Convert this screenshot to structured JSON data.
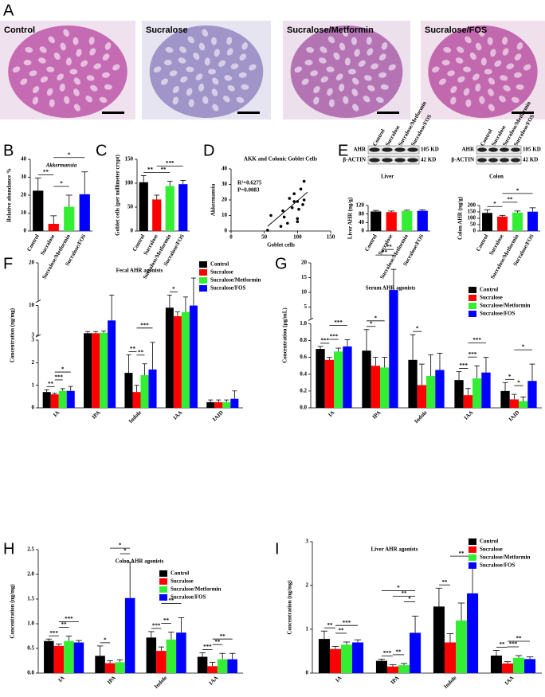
{
  "panel_a": {
    "label": "A",
    "images": [
      "Control",
      "Sucralose",
      "Sucralose/Metformin",
      "Sucralose/FOS"
    ]
  },
  "chart_data": [
    {
      "type": "bar",
      "panel_label": "B",
      "title": "Akkermansia",
      "y_label": "Relative abundance %",
      "categories": [
        "Control",
        "Sucralose",
        "Sucralose/Metformin",
        "Sucralose/FOS"
      ],
      "colors": [
        "#000000",
        "#ff0000",
        "#33ee33",
        "#0000ff"
      ],
      "values": [
        22.5,
        4,
        13.5,
        20.5
      ],
      "errors": [
        7,
        4.5,
        6.5,
        12.5
      ],
      "ylim": [
        0,
        40
      ],
      "yticks": [
        0,
        10,
        20,
        30,
        40
      ],
      "comparisons": [
        {
          "between": [
            0,
            1
          ],
          "label": "**"
        },
        {
          "between": [
            1,
            2
          ],
          "label": "*"
        },
        {
          "between": [
            1,
            3
          ],
          "label": "*"
        }
      ]
    },
    {
      "type": "bar",
      "panel_label": "C",
      "y_label": "Goblet cells (per millimeter crypt)",
      "categories": [
        "Control",
        "Sucralose",
        "Sucralose/Metformin",
        "Sucralose/FOS"
      ],
      "colors": [
        "#000000",
        "#ff0000",
        "#33ee33",
        "#0000ff"
      ],
      "values": [
        102,
        66,
        94,
        98
      ],
      "errors": [
        14,
        9,
        10,
        8
      ],
      "ylim": [
        0,
        150
      ],
      "yticks": [
        0,
        50,
        100,
        150
      ],
      "comparisons": [
        {
          "between": [
            0,
            1
          ],
          "label": "**"
        },
        {
          "between": [
            1,
            2
          ],
          "label": "**"
        },
        {
          "between": [
            1,
            3
          ],
          "label": "***"
        }
      ]
    },
    {
      "type": "scatter",
      "panel_label": "D",
      "title": "AKK and Colonic Goblet Cells",
      "x_label": "Goblet cells",
      "y_label": "Akkermansia",
      "x": [
        55,
        60,
        75,
        78,
        80,
        85,
        88,
        92,
        95,
        95,
        100,
        100,
        100,
        102,
        105,
        108,
        110,
        110
      ],
      "y": [
        0.5,
        10,
        3,
        13,
        9,
        5,
        21,
        15,
        19,
        24,
        6,
        8,
        19,
        14,
        27,
        17,
        20,
        32
      ],
      "color": "#000000",
      "trendline": {
        "x": [
          55,
          115
        ],
        "y": [
          3,
          25
        ]
      },
      "annotations": [
        "R²=0.6275",
        "P=0.0083"
      ],
      "xlim": [
        0,
        150
      ],
      "xticks": [
        0,
        50,
        100,
        150
      ],
      "ylim": [
        0,
        40
      ],
      "yticks": [
        0,
        10,
        20,
        30,
        40
      ]
    },
    {
      "type": "bar",
      "panel_label": "E",
      "y_label": "Liver AHR (ng/g)",
      "blot": {
        "rows": [
          "AHR",
          "β-ACTIN"
        ],
        "sizes": [
          "105 KD",
          "42 KD"
        ],
        "tissue": "Liver"
      },
      "categories": [
        "Control",
        "Sucralose",
        "Sucralose/Metformin",
        "Sucralose/FOS"
      ],
      "colors": [
        "#000000",
        "#ff0000",
        "#33ee33",
        "#0000ff"
      ],
      "values": [
        92,
        89,
        94,
        95
      ],
      "errors": [
        5,
        5,
        4,
        5
      ],
      "ylim": [
        0,
        120
      ],
      "yticks": [
        0,
        40,
        80,
        120
      ],
      "comparisons": []
    },
    {
      "type": "bar",
      "y_label": "Colon AHR (ng/g)",
      "blot": {
        "rows": [
          "AHR",
          "β-ACTIN"
        ],
        "sizes": [
          "105 KD",
          "42 KD"
        ],
        "tissue": "Colon"
      },
      "categories": [
        "Control",
        "Sucralose",
        "Sucralose/Metformin",
        "Sucralose/FOS"
      ],
      "colors": [
        "#000000",
        "#ff0000",
        "#33ee33",
        "#0000ff"
      ],
      "values": [
        142,
        113,
        145,
        152
      ],
      "errors": [
        25,
        10,
        12,
        30
      ],
      "ylim": [
        0,
        200
      ],
      "yticks": [
        0,
        50,
        100,
        150,
        200
      ],
      "comparisons": [
        {
          "between": [
            0,
            1
          ],
          "label": "*"
        },
        {
          "between": [
            1,
            2
          ],
          "label": "**"
        },
        {
          "between": [
            1,
            3
          ],
          "label": "*"
        }
      ]
    },
    {
      "type": "bar",
      "panel_label": "F",
      "title": "Fecal AHR agonists",
      "y_label": "Concentration (ng/mg)",
      "categories": [
        "IA",
        "IPA",
        "Indole",
        "IAA",
        "IAID"
      ],
      "legend": "upper right",
      "y_segments": [
        {
          "ylim": [
            0,
            3
          ],
          "yticks": [
            0,
            1,
            2,
            3
          ]
        },
        {
          "ylim": [
            3,
            10
          ],
          "yticks": [
            3,
            10
          ]
        },
        {
          "ylim": [
            10,
            20
          ],
          "yticks": [
            20
          ]
        }
      ],
      "series": [
        {
          "name": "Control",
          "color": "#000000",
          "values": [
            0.7,
            3.5,
            1.55,
            9.5,
            0.25
          ],
          "errors": [
            0.1,
            0.4,
            0.8,
            2,
            0.1
          ]
        },
        {
          "name": "Sucralose",
          "color": "#ff0000",
          "values": [
            0.6,
            3.5,
            0.7,
            7.5,
            0.25
          ],
          "errors": [
            0.05,
            0.4,
            0.3,
            1,
            0.1
          ]
        },
        {
          "name": "Sucralose/Metformin",
          "color": "#33ee33",
          "values": [
            0.75,
            3.6,
            1.45,
            8.5,
            0.25
          ],
          "errors": [
            0.1,
            0.4,
            0.5,
            2.5,
            0.1
          ]
        },
        {
          "name": "Sucralose/FOS",
          "color": "#0000ff",
          "values": [
            0.75,
            6.5,
            1.7,
            10,
            0.4
          ],
          "errors": [
            0.2,
            5,
            1.2,
            6,
            0.35
          ]
        }
      ],
      "comparisons": [
        {
          "category": 0,
          "between": [
            0,
            1
          ],
          "label": "**"
        },
        {
          "category": 0,
          "between": [
            1,
            2
          ],
          "label": "***"
        },
        {
          "category": 0,
          "between": [
            1,
            3
          ],
          "label": "*"
        },
        {
          "category": 2,
          "between": [
            0,
            1
          ],
          "label": "**"
        },
        {
          "category": 2,
          "between": [
            1,
            2
          ],
          "label": "**"
        },
        {
          "category": 2,
          "between": [
            1,
            3
          ],
          "label": "***"
        },
        {
          "category": 3,
          "between": [
            0,
            1
          ],
          "label": "*"
        }
      ]
    },
    {
      "type": "bar",
      "panel_label": "G",
      "title": "Serum AHR agonists",
      "y_label": "Concentration (μg/mL)",
      "categories": [
        "IA",
        "IPA",
        "Indole",
        "IAA",
        "IAID"
      ],
      "legend": "upper right",
      "y_segments": [
        {
          "ylim": [
            0,
            1
          ],
          "yticks": [
            {
              "value": 0,
              "label": "0.0"
            },
            0.2,
            0.4,
            0.6,
            0.8,
            {
              "value": 1,
              "label": "1.0"
            }
          ]
        },
        {
          "ylim": [
            1,
            20
          ],
          "yticks": [
            5,
            10,
            15,
            20
          ]
        }
      ],
      "series": [
        {
          "name": "Control",
          "color": "#000000",
          "values": [
            0.7,
            0.68,
            0.57,
            0.33,
            0.2
          ],
          "errors": [
            0.03,
            0.25,
            0.3,
            0.1,
            0.1
          ]
        },
        {
          "name": "Sucralose",
          "color": "#ff0000",
          "values": [
            0.57,
            0.5,
            0.27,
            0.15,
            0.1
          ],
          "errors": [
            0.03,
            0.1,
            0.25,
            0.08,
            0.06
          ]
        },
        {
          "name": "Sucralose/Metformin",
          "color": "#33ee33",
          "values": [
            0.67,
            0.48,
            0.38,
            0.35,
            0.08
          ],
          "errors": [
            0.04,
            0.12,
            0.25,
            0.15,
            0.05
          ]
        },
        {
          "name": "Sucralose/FOS",
          "color": "#0000ff",
          "values": [
            0.73,
            10.8,
            0.45,
            0.42,
            0.32
          ],
          "errors": [
            0.08,
            7,
            0.2,
            0.18,
            0.2
          ]
        }
      ],
      "comparisons": [
        {
          "category": 0,
          "between": [
            0,
            1
          ],
          "label": "***"
        },
        {
          "category": 0,
          "between": [
            1,
            2
          ],
          "label": "***"
        },
        {
          "category": 0,
          "between": [
            1,
            3
          ],
          "label": "***"
        },
        {
          "category": 1,
          "between": [
            0,
            1
          ],
          "label": "*"
        },
        {
          "category": 1,
          "between": [
            0,
            2
          ],
          "label": "*"
        },
        {
          "category": 1,
          "between": [
            1,
            3
          ],
          "label": "**"
        },
        {
          "category": 1,
          "between": [
            2,
            3
          ],
          "label": "**"
        },
        {
          "category": 2,
          "between": [
            0,
            1
          ],
          "label": "*"
        },
        {
          "category": 3,
          "between": [
            0,
            1
          ],
          "label": "***"
        },
        {
          "category": 3,
          "between": [
            1,
            2
          ],
          "label": "***"
        },
        {
          "category": 3,
          "between": [
            1,
            3
          ],
          "label": "***"
        },
        {
          "category": 4,
          "between": [
            0,
            1
          ],
          "label": "*"
        },
        {
          "category": 4,
          "between": [
            1,
            2
          ],
          "label": "*"
        },
        {
          "category": 4,
          "between": [
            1,
            3
          ],
          "label": "*"
        }
      ]
    },
    {
      "type": "bar",
      "panel_label": "H",
      "title": "Colon AHR agonists",
      "y_label": "Concentration (ng/mg)",
      "categories": [
        "IA",
        "IPA",
        "Indole",
        "IAA"
      ],
      "legend": "upper right",
      "ylim": [
        0,
        2.5
      ],
      "yticks": [
        {
          "value": 0,
          "label": "0.0"
        },
        0.5,
        {
          "value": 1,
          "label": "1.0"
        },
        1.5,
        {
          "value": 2,
          "label": "2.0"
        },
        2.5
      ],
      "series": [
        {
          "name": "Control",
          "color": "#000000",
          "values": [
            0.65,
            0.35,
            0.72,
            0.33
          ],
          "errors": [
            0.04,
            0.2,
            0.12,
            0.08
          ]
        },
        {
          "name": "Sucralose",
          "color": "#ff0000",
          "values": [
            0.55,
            0.2,
            0.45,
            0.14
          ],
          "errors": [
            0.04,
            0.05,
            0.08,
            0.08
          ]
        },
        {
          "name": "Sucralose/Metformin",
          "color": "#33ee33",
          "values": [
            0.65,
            0.22,
            0.68,
            0.28
          ],
          "errors": [
            0.1,
            0.05,
            0.15,
            0.12
          ]
        },
        {
          "name": "Sucralose/FOS",
          "color": "#0000ff",
          "values": [
            0.62,
            1.52,
            0.82,
            0.28
          ],
          "errors": [
            0.04,
            0.72,
            0.3,
            0.12
          ]
        }
      ],
      "comparisons": [
        {
          "category": 0,
          "between": [
            0,
            1
          ],
          "label": "***"
        },
        {
          "category": 0,
          "between": [
            1,
            2
          ],
          "label": "**"
        },
        {
          "category": 0,
          "between": [
            1,
            3
          ],
          "label": "***"
        },
        {
          "category": 1,
          "between": [
            0,
            1
          ],
          "label": "*"
        },
        {
          "category": 1,
          "between": [
            2,
            3
          ],
          "label": "*"
        },
        {
          "category": 1,
          "between": [
            1,
            3
          ],
          "label": "*"
        },
        {
          "category": 2,
          "between": [
            0,
            1
          ],
          "label": "***"
        },
        {
          "category": 2,
          "between": [
            1,
            2
          ],
          "label": "**"
        },
        {
          "category": 2,
          "between": [
            1,
            3
          ],
          "label": "**"
        },
        {
          "category": 3,
          "between": [
            0,
            1
          ],
          "label": "***"
        },
        {
          "category": 3,
          "between": [
            1,
            2
          ],
          "label": "**"
        },
        {
          "category": 3,
          "between": [
            1,
            3
          ],
          "label": "**"
        }
      ]
    },
    {
      "type": "bar",
      "panel_label": "I",
      "title": "Liver AHR agonists",
      "y_label": "Concentration (ng/mg)",
      "categories": [
        "IA",
        "IPA",
        "Indole",
        "IAA"
      ],
      "legend": "upper right",
      "ylim": [
        0,
        3
      ],
      "yticks": [
        0,
        1,
        2,
        3
      ],
      "series": [
        {
          "name": "Control",
          "color": "#000000",
          "values": [
            0.78,
            0.28,
            1.52,
            0.4
          ],
          "errors": [
            0.18,
            0.04,
            0.42,
            0.12
          ]
        },
        {
          "name": "Sucralose",
          "color": "#ff0000",
          "values": [
            0.55,
            0.15,
            0.7,
            0.22
          ],
          "errors": [
            0.06,
            0.04,
            0.2,
            0.04
          ]
        },
        {
          "name": "Sucralose/Metformin",
          "color": "#33ee33",
          "values": [
            0.65,
            0.18,
            1.2,
            0.35
          ],
          "errors": [
            0.06,
            0.04,
            0.4,
            0.05
          ]
        },
        {
          "name": "Sucralose/FOS",
          "color": "#0000ff",
          "values": [
            0.7,
            0.92,
            1.82,
            0.32
          ],
          "errors": [
            0.06,
            0.38,
            0.65,
            0.05
          ]
        }
      ],
      "comparisons": [
        {
          "category": 0,
          "between": [
            0,
            1
          ],
          "label": "**"
        },
        {
          "category": 0,
          "between": [
            1,
            2
          ],
          "label": "**"
        },
        {
          "category": 0,
          "between": [
            1,
            3
          ],
          "label": "***"
        },
        {
          "category": 1,
          "between": [
            0,
            1
          ],
          "label": "***"
        },
        {
          "category": 1,
          "between": [
            1,
            2
          ],
          "label": "**"
        },
        {
          "category": 1,
          "between": [
            2,
            3
          ],
          "label": "*"
        },
        {
          "category": 1,
          "between": [
            1,
            3
          ],
          "label": "**"
        },
        {
          "category": 1,
          "between": [
            0,
            3
          ],
          "label": "*"
        },
        {
          "category": 2,
          "between": [
            0,
            1
          ],
          "label": "**"
        },
        {
          "category": 2,
          "between": [
            1,
            3
          ],
          "label": "**"
        },
        {
          "category": 3,
          "between": [
            0,
            1
          ],
          "label": "**"
        },
        {
          "category": 3,
          "between": [
            1,
            2
          ],
          "label": "***"
        },
        {
          "category": 3,
          "between": [
            1,
            3
          ],
          "label": "**"
        }
      ]
    }
  ]
}
